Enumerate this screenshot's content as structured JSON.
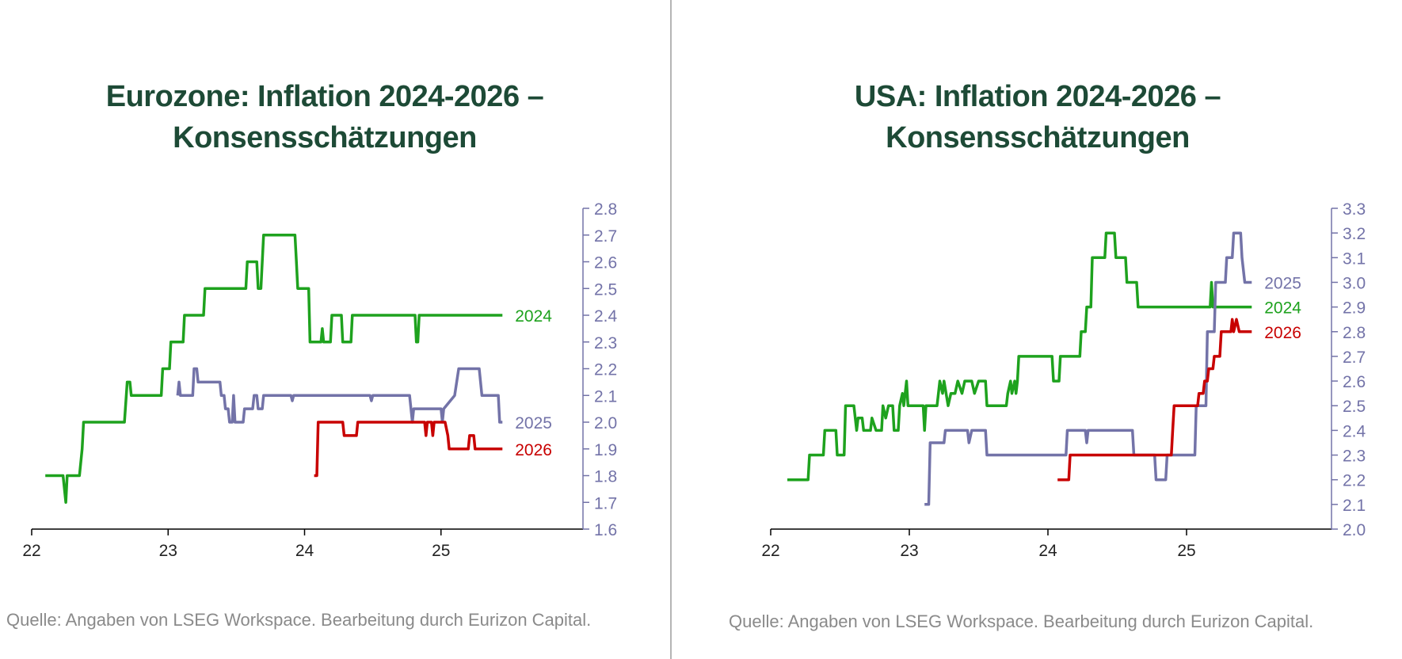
{
  "source_text": "Quelle: Angaben von LSEG Workspace. Bearbeitung durch Eurizon Capital.",
  "colors": {
    "y2024": "#1ea21e",
    "y2025": "#7373a8",
    "y2026": "#c80000",
    "title": "#1d4a36",
    "axis": "#7373a8"
  },
  "chart_data": [
    {
      "type": "line",
      "title_line1": "Eurozone: Inflation 2024-2026 –",
      "title_line2": "Konsensschätzungen",
      "x_ticks": [
        "22",
        "23",
        "24",
        "25"
      ],
      "x_range": [
        2022.0,
        2026.0
      ],
      "y_ticks": [
        "1.6",
        "1.7",
        "1.8",
        "1.9",
        "2.0",
        "2.1",
        "2.2",
        "2.3",
        "2.4",
        "2.5",
        "2.6",
        "2.7",
        "2.8"
      ],
      "ylim": [
        1.6,
        2.8
      ],
      "y_axis_position": "right",
      "grid": false,
      "series": [
        {
          "name": "2024",
          "color": "#1ea21e",
          "label_y": 2.4,
          "points": [
            [
              2022.1,
              1.8
            ],
            [
              2022.23,
              1.8
            ],
            [
              2022.25,
              1.7
            ],
            [
              2022.26,
              1.8
            ],
            [
              2022.35,
              1.8
            ],
            [
              2022.37,
              1.9
            ],
            [
              2022.38,
              2.0
            ],
            [
              2022.68,
              2.0
            ],
            [
              2022.7,
              2.15
            ],
            [
              2022.72,
              2.15
            ],
            [
              2022.73,
              2.1
            ],
            [
              2022.95,
              2.1
            ],
            [
              2022.96,
              2.2
            ],
            [
              2023.01,
              2.2
            ],
            [
              2023.02,
              2.3
            ],
            [
              2023.11,
              2.3
            ],
            [
              2023.12,
              2.4
            ],
            [
              2023.26,
              2.4
            ],
            [
              2023.27,
              2.5
            ],
            [
              2023.57,
              2.5
            ],
            [
              2023.58,
              2.6
            ],
            [
              2023.65,
              2.6
            ],
            [
              2023.66,
              2.5
            ],
            [
              2023.68,
              2.5
            ],
            [
              2023.69,
              2.6
            ],
            [
              2023.7,
              2.7
            ],
            [
              2023.93,
              2.7
            ],
            [
              2023.94,
              2.6
            ],
            [
              2023.95,
              2.5
            ],
            [
              2024.03,
              2.5
            ],
            [
              2024.04,
              2.3
            ],
            [
              2024.12,
              2.3
            ],
            [
              2024.13,
              2.35
            ],
            [
              2024.14,
              2.3
            ],
            [
              2024.19,
              2.3
            ],
            [
              2024.2,
              2.4
            ],
            [
              2024.27,
              2.4
            ],
            [
              2024.28,
              2.3
            ],
            [
              2024.34,
              2.3
            ],
            [
              2024.35,
              2.4
            ],
            [
              2024.81,
              2.4
            ],
            [
              2024.82,
              2.3
            ],
            [
              2024.83,
              2.3
            ],
            [
              2024.84,
              2.4
            ],
            [
              2025.45,
              2.4
            ]
          ]
        },
        {
          "name": "2025",
          "color": "#7373a8",
          "label_y": 2.0,
          "points": [
            [
              2023.07,
              2.1
            ],
            [
              2023.08,
              2.15
            ],
            [
              2023.09,
              2.1
            ],
            [
              2023.18,
              2.1
            ],
            [
              2023.19,
              2.2
            ],
            [
              2023.21,
              2.2
            ],
            [
              2023.22,
              2.15
            ],
            [
              2023.38,
              2.15
            ],
            [
              2023.39,
              2.1
            ],
            [
              2023.41,
              2.1
            ],
            [
              2023.42,
              2.05
            ],
            [
              2023.44,
              2.05
            ],
            [
              2023.45,
              2.0
            ],
            [
              2023.47,
              2.0
            ],
            [
              2023.48,
              2.1
            ],
            [
              2023.49,
              2.0
            ],
            [
              2023.55,
              2.0
            ],
            [
              2023.56,
              2.05
            ],
            [
              2023.62,
              2.05
            ],
            [
              2023.63,
              2.1
            ],
            [
              2023.65,
              2.1
            ],
            [
              2023.66,
              2.05
            ],
            [
              2023.69,
              2.05
            ],
            [
              2023.7,
              2.1
            ],
            [
              2023.9,
              2.1
            ],
            [
              2023.91,
              2.08
            ],
            [
              2023.92,
              2.1
            ],
            [
              2024.48,
              2.1
            ],
            [
              2024.49,
              2.08
            ],
            [
              2024.5,
              2.1
            ],
            [
              2024.77,
              2.1
            ],
            [
              2024.79,
              2.0
            ],
            [
              2024.8,
              2.05
            ],
            [
              2025.0,
              2.05
            ],
            [
              2025.01,
              2.0
            ],
            [
              2025.02,
              2.05
            ],
            [
              2025.1,
              2.1
            ],
            [
              2025.13,
              2.2
            ],
            [
              2025.28,
              2.2
            ],
            [
              2025.3,
              2.1
            ],
            [
              2025.42,
              2.1
            ],
            [
              2025.43,
              2.0
            ],
            [
              2025.45,
              2.0
            ]
          ]
        },
        {
          "name": "2026",
          "color": "#c80000",
          "label_y": 1.9,
          "points": [
            [
              2024.07,
              1.8
            ],
            [
              2024.09,
              1.8
            ],
            [
              2024.1,
              2.0
            ],
            [
              2024.28,
              2.0
            ],
            [
              2024.29,
              1.95
            ],
            [
              2024.38,
              1.95
            ],
            [
              2024.39,
              2.0
            ],
            [
              2024.88,
              2.0
            ],
            [
              2024.89,
              1.95
            ],
            [
              2024.9,
              2.0
            ],
            [
              2024.93,
              2.0
            ],
            [
              2024.94,
              1.95
            ],
            [
              2024.95,
              2.0
            ],
            [
              2025.03,
              2.0
            ],
            [
              2025.05,
              1.95
            ],
            [
              2025.06,
              1.9
            ],
            [
              2025.2,
              1.9
            ],
            [
              2025.21,
              1.95
            ],
            [
              2025.24,
              1.95
            ],
            [
              2025.25,
              1.9
            ],
            [
              2025.45,
              1.9
            ]
          ]
        }
      ]
    },
    {
      "type": "line",
      "title_line1": "USA: Inflation 2024-2026 –",
      "title_line2": "Konsensschätzungen",
      "x_ticks": [
        "22",
        "23",
        "24",
        "25"
      ],
      "x_range": [
        2022.0,
        2026.0
      ],
      "y_ticks": [
        "2.0",
        "2.1",
        "2.2",
        "2.3",
        "2.4",
        "2.5",
        "2.6",
        "2.7",
        "2.8",
        "2.9",
        "3.0",
        "3.1",
        "3.2",
        "3.3"
      ],
      "ylim": [
        2.0,
        3.3
      ],
      "y_axis_position": "right",
      "grid": false,
      "series": [
        {
          "name": "2024",
          "color": "#1ea21e",
          "label_y": 2.9,
          "points": [
            [
              2022.12,
              2.2
            ],
            [
              2022.27,
              2.2
            ],
            [
              2022.28,
              2.3
            ],
            [
              2022.38,
              2.3
            ],
            [
              2022.39,
              2.4
            ],
            [
              2022.47,
              2.4
            ],
            [
              2022.48,
              2.3
            ],
            [
              2022.5,
              2.3
            ],
            [
              2022.51,
              2.3
            ],
            [
              2022.53,
              2.3
            ],
            [
              2022.54,
              2.5
            ],
            [
              2022.6,
              2.5
            ],
            [
              2022.62,
              2.4
            ],
            [
              2022.63,
              2.45
            ],
            [
              2022.66,
              2.45
            ],
            [
              2022.67,
              2.4
            ],
            [
              2022.72,
              2.4
            ],
            [
              2022.73,
              2.45
            ],
            [
              2022.76,
              2.4
            ],
            [
              2022.8,
              2.4
            ],
            [
              2022.81,
              2.5
            ],
            [
              2022.83,
              2.45
            ],
            [
              2022.85,
              2.5
            ],
            [
              2022.88,
              2.5
            ],
            [
              2022.89,
              2.4
            ],
            [
              2022.92,
              2.4
            ],
            [
              2022.93,
              2.5
            ],
            [
              2022.95,
              2.55
            ],
            [
              2022.96,
              2.5
            ],
            [
              2022.98,
              2.6
            ],
            [
              2022.99,
              2.5
            ],
            [
              2023.1,
              2.5
            ],
            [
              2023.11,
              2.4
            ],
            [
              2023.12,
              2.5
            ],
            [
              2023.2,
              2.5
            ],
            [
              2023.22,
              2.6
            ],
            [
              2023.24,
              2.55
            ],
            [
              2023.25,
              2.6
            ],
            [
              2023.28,
              2.5
            ],
            [
              2023.3,
              2.55
            ],
            [
              2023.33,
              2.55
            ],
            [
              2023.35,
              2.6
            ],
            [
              2023.38,
              2.55
            ],
            [
              2023.4,
              2.6
            ],
            [
              2023.45,
              2.6
            ],
            [
              2023.47,
              2.55
            ],
            [
              2023.5,
              2.6
            ],
            [
              2023.55,
              2.6
            ],
            [
              2023.56,
              2.5
            ],
            [
              2023.7,
              2.5
            ],
            [
              2023.71,
              2.55
            ],
            [
              2023.73,
              2.6
            ],
            [
              2023.74,
              2.55
            ],
            [
              2023.76,
              2.6
            ],
            [
              2023.77,
              2.55
            ],
            [
              2023.78,
              2.6
            ],
            [
              2023.79,
              2.7
            ],
            [
              2024.03,
              2.7
            ],
            [
              2024.04,
              2.6
            ],
            [
              2024.08,
              2.6
            ],
            [
              2024.09,
              2.7
            ],
            [
              2024.23,
              2.7
            ],
            [
              2024.24,
              2.8
            ],
            [
              2024.27,
              2.8
            ],
            [
              2024.28,
              2.9
            ],
            [
              2024.31,
              2.9
            ],
            [
              2024.32,
              3.1
            ],
            [
              2024.41,
              3.1
            ],
            [
              2024.42,
              3.2
            ],
            [
              2024.48,
              3.2
            ],
            [
              2024.49,
              3.1
            ],
            [
              2024.56,
              3.1
            ],
            [
              2024.57,
              3.0
            ],
            [
              2024.64,
              3.0
            ],
            [
              2024.65,
              2.9
            ],
            [
              2025.17,
              2.9
            ],
            [
              2025.18,
              3.0
            ],
            [
              2025.19,
              2.9
            ],
            [
              2025.47,
              2.9
            ]
          ]
        },
        {
          "name": "2025",
          "color": "#7373a8",
          "label_y": 3.0,
          "points": [
            [
              2023.11,
              2.1
            ],
            [
              2023.14,
              2.1
            ],
            [
              2023.15,
              2.35
            ],
            [
              2023.25,
              2.35
            ],
            [
              2023.26,
              2.4
            ],
            [
              2023.42,
              2.4
            ],
            [
              2023.43,
              2.35
            ],
            [
              2023.45,
              2.4
            ],
            [
              2023.55,
              2.4
            ],
            [
              2023.56,
              2.3
            ],
            [
              2024.13,
              2.3
            ],
            [
              2024.14,
              2.4
            ],
            [
              2024.27,
              2.4
            ],
            [
              2024.28,
              2.35
            ],
            [
              2024.29,
              2.4
            ],
            [
              2024.61,
              2.4
            ],
            [
              2024.62,
              2.3
            ],
            [
              2024.77,
              2.3
            ],
            [
              2024.78,
              2.2
            ],
            [
              2024.85,
              2.2
            ],
            [
              2024.86,
              2.3
            ],
            [
              2025.06,
              2.3
            ],
            [
              2025.07,
              2.5
            ],
            [
              2025.14,
              2.5
            ],
            [
              2025.15,
              2.8
            ],
            [
              2025.2,
              2.8
            ],
            [
              2025.21,
              3.0
            ],
            [
              2025.28,
              3.0
            ],
            [
              2025.29,
              3.1
            ],
            [
              2025.33,
              3.1
            ],
            [
              2025.34,
              3.2
            ],
            [
              2025.39,
              3.2
            ],
            [
              2025.4,
              3.1
            ],
            [
              2025.42,
              3.0
            ],
            [
              2025.47,
              3.0
            ]
          ]
        },
        {
          "name": "2026",
          "color": "#c80000",
          "label_y": 2.8,
          "points": [
            [
              2024.07,
              2.2
            ],
            [
              2024.15,
              2.2
            ],
            [
              2024.16,
              2.3
            ],
            [
              2024.89,
              2.3
            ],
            [
              2024.9,
              2.4
            ],
            [
              2024.91,
              2.5
            ],
            [
              2025.08,
              2.5
            ],
            [
              2025.09,
              2.55
            ],
            [
              2025.12,
              2.55
            ],
            [
              2025.13,
              2.6
            ],
            [
              2025.15,
              2.6
            ],
            [
              2025.16,
              2.65
            ],
            [
              2025.19,
              2.65
            ],
            [
              2025.2,
              2.7
            ],
            [
              2025.24,
              2.7
            ],
            [
              2025.25,
              2.8
            ],
            [
              2025.32,
              2.8
            ],
            [
              2025.33,
              2.85
            ],
            [
              2025.34,
              2.8
            ],
            [
              2025.36,
              2.85
            ],
            [
              2025.38,
              2.8
            ],
            [
              2025.47,
              2.8
            ]
          ]
        }
      ]
    }
  ]
}
